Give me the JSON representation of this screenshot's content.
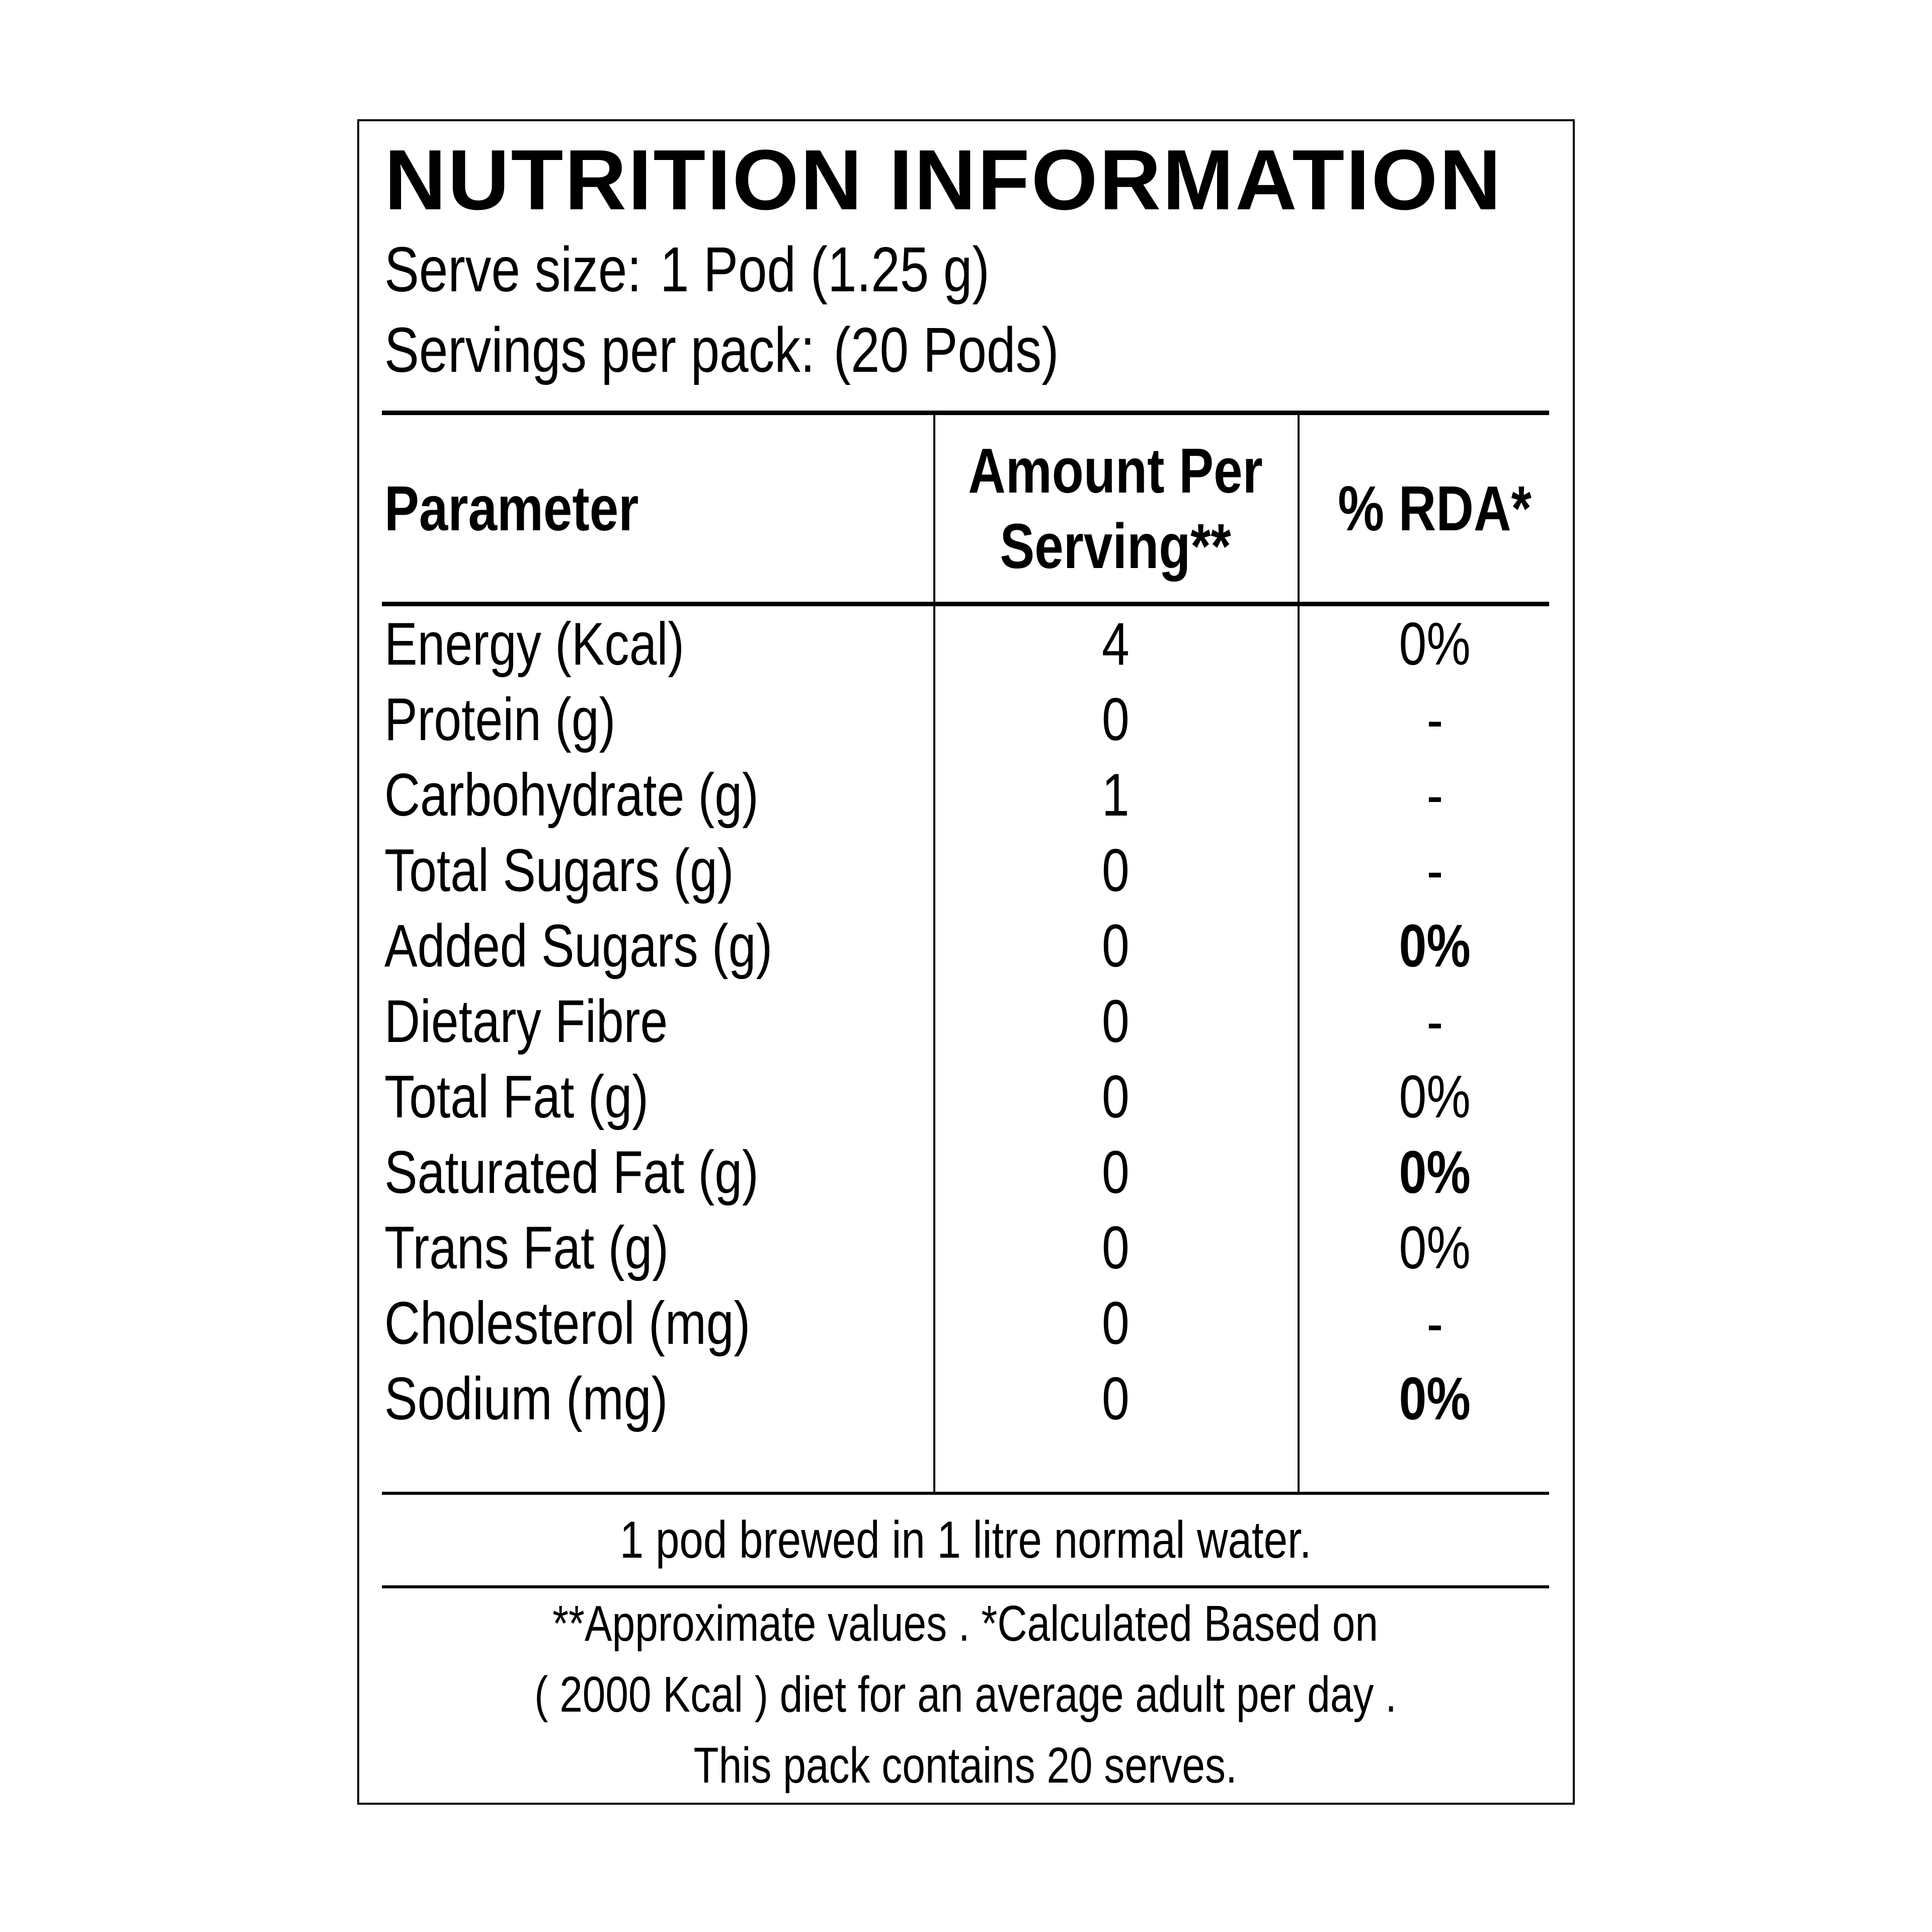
{
  "page": {
    "background": "#ffffff",
    "text_color": "#000000",
    "border_color": "#000000"
  },
  "label": {
    "title": "NUTRITION INFORMATION",
    "serve_size": {
      "label": "Serve size:",
      "value": "1 Pod (1.25 g)"
    },
    "servings_per_pack": {
      "label": "Servings per pack:",
      "value": "(20 Pods)"
    },
    "table": {
      "header": {
        "parameter": "Parameter",
        "amount_lines": [
          "Amount Per",
          "Serving**"
        ],
        "rda": "% RDA*"
      },
      "rows": [
        {
          "parameter": "Energy (Kcal)",
          "amount": "4",
          "rda": "0%",
          "rda_bold": false
        },
        {
          "parameter": "Protein (g)",
          "amount": "0",
          "rda": "-",
          "rda_bold": false
        },
        {
          "parameter": "Carbohydrate (g)",
          "amount": "1",
          "rda": "-",
          "rda_bold": false
        },
        {
          "parameter": "Total Sugars (g)",
          "amount": "0",
          "rda": "-",
          "rda_bold": false
        },
        {
          "parameter": "Added Sugars (g)",
          "amount": "0",
          "rda": "0%",
          "rda_bold": true
        },
        {
          "parameter": "Dietary Fibre",
          "amount": "0",
          "rda": "-",
          "rda_bold": false
        },
        {
          "parameter": "Total Fat (g)",
          "amount": "0",
          "rda": "0%",
          "rda_bold": false
        },
        {
          "parameter": "Saturated Fat (g)",
          "amount": "0",
          "rda": "0%",
          "rda_bold": true
        },
        {
          "parameter": "Trans Fat (g)",
          "amount": "0",
          "rda": "0%",
          "rda_bold": false
        },
        {
          "parameter": "Cholesterol (mg)",
          "amount": "0",
          "rda": "-",
          "rda_bold": false
        },
        {
          "parameter": "Sodium (mg)",
          "amount": "0",
          "rda": "0%",
          "rda_bold": true
        }
      ]
    },
    "brew_note": "1 pod brewed in 1 litre normal water.",
    "footnote_lines": [
      "**Approximate values . *Calculated Based on",
      "( 2000 Kcal ) diet for an average adult per day .",
      "This pack contains 20 serves."
    ]
  }
}
